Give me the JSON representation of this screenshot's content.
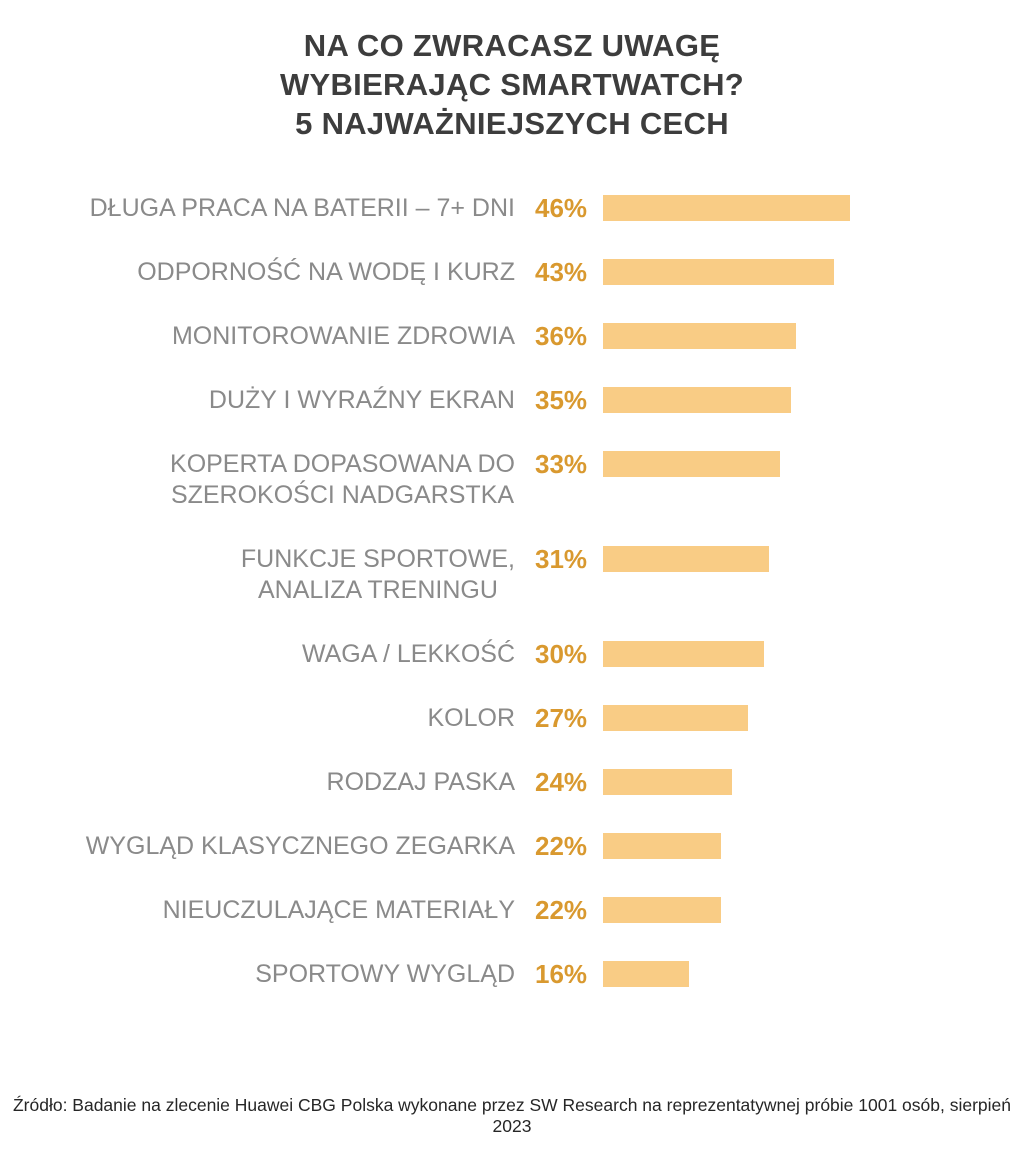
{
  "header": {
    "title": "NA CO ZWRACASZ UWAGĘ\nWYBIERAJĄC SMARTWATCH?\n5 NAJWAŻNIEJSZYCH CECH"
  },
  "chart_data": {
    "type": "bar",
    "orientation": "horizontal",
    "title": "NA CO ZWRACASZ UWAGĘ WYBIERAJĄC SMARTWATCH? 5 NAJWAŻNIEJSZYCH CECH",
    "unit": "%",
    "categories": [
      "DŁUGA PRACA NA BATERII – 7+ DNI",
      "ODPORNOŚĆ NA WODĘ I KURZ",
      "MONITOROWANIE ZDROWIA",
      "DUŻY I WYRAŹNY EKRAN",
      "KOPERTA DOPASOWANA DO SZEROKOŚCI NADGARSTKA",
      "FUNKCJE SPORTOWE, ANALIZA TRENINGU",
      "WAGA / LEKKOŚĆ",
      "KOLOR",
      "RODZAJ PASKA",
      "WYGLĄD KLASYCZNEGO ZEGARKA",
      "NIEUCZULAJĄCE MATERIAŁY",
      "SPORTOWY WYGLĄD"
    ],
    "values": [
      46,
      43,
      36,
      35,
      33,
      31,
      30,
      27,
      24,
      22,
      22,
      16
    ],
    "xlim": [
      0,
      50
    ],
    "grid": false,
    "legend": false,
    "value_labels_position": "left-of-bar",
    "bar_color": "#f9cc85",
    "value_label_color": "#d9992f",
    "category_label_color": "#8a8a8a",
    "title_color": "#3d3d3d"
  },
  "display": {
    "labels": [
      "DŁUGA PRACA NA BATERII – 7+ DNI",
      "ODPORNOŚĆ NA WODĘ I KURZ",
      "MONITOROWANIE ZDROWIA",
      "DUŻY I WYRAŹNY EKRAN",
      "KOPERTA DOPASOWANA DO\nSZEROKOŚCI NADGARSTKA",
      "FUNKCJE SPORTOWE,\nANALIZA TRENINGU",
      "WAGA / LEKKOŚĆ",
      "KOLOR",
      "RODZAJ PASKA",
      "WYGLĄD KLASYCZNEGO ZEGARKA",
      "NIEUCZULAJĄCE MATERIAŁY",
      "SPORTOWY WYGLĄD"
    ],
    "value_labels": [
      "46%",
      "43%",
      "36%",
      "35%",
      "33%",
      "31%",
      "30%",
      "27%",
      "24%",
      "22%",
      "22%",
      "16%"
    ]
  },
  "footer": {
    "source": "Źródło: Badanie na zlecenie Huawei CBG Polska wykonane przez SW Research na reprezentatywnej próbie 1001 osób, sierpień 2023"
  }
}
